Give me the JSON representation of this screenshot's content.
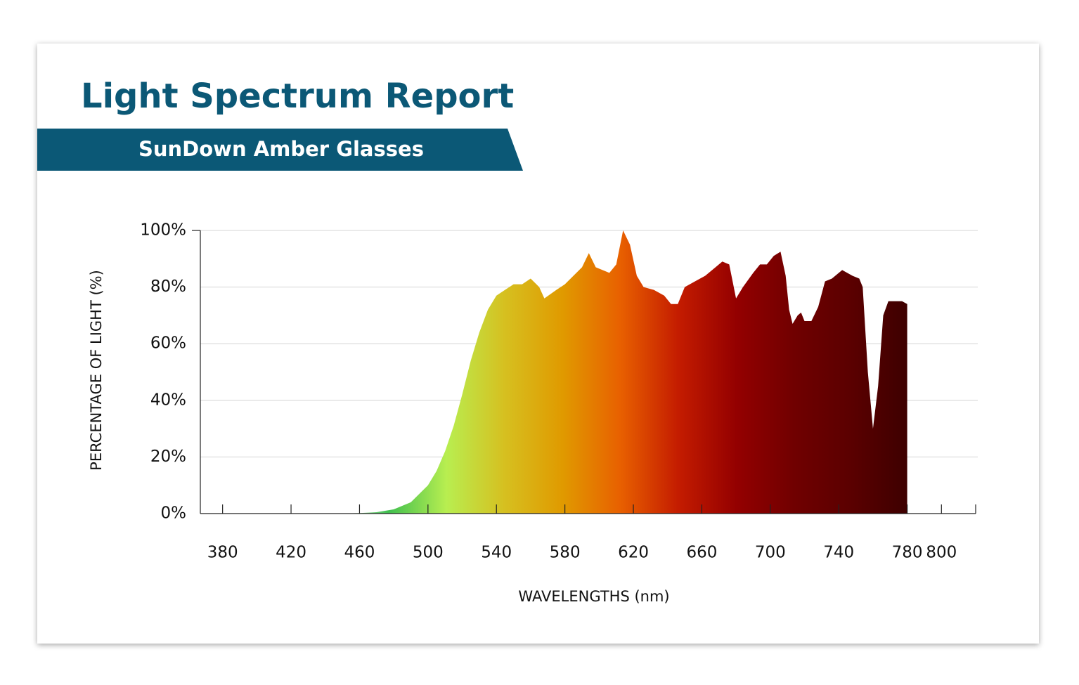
{
  "chart_data": {
    "type": "area",
    "title": "Light Spectrum Report",
    "subtitle": "SunDown Amber Glasses",
    "xlabel": "WAVELENGTHS (nm)",
    "ylabel": "PERCENTAGE OF LIGHT (%)",
    "x": [
      450,
      460,
      470,
      480,
      490,
      500,
      505,
      510,
      515,
      520,
      525,
      530,
      535,
      540,
      545,
      550,
      555,
      560,
      565,
      568,
      575,
      580,
      585,
      590,
      594,
      598,
      602,
      606,
      610,
      614,
      618,
      622,
      626,
      632,
      638,
      642,
      646,
      650,
      656,
      662,
      668,
      672,
      676,
      680,
      684,
      690,
      694,
      698,
      702,
      706,
      709,
      711,
      713,
      716,
      718,
      720,
      724,
      728,
      732,
      736,
      742,
      748,
      752,
      754,
      757,
      760,
      763,
      766,
      769,
      773,
      777,
      780
    ],
    "values": [
      0,
      0.2,
      0.5,
      1.5,
      4,
      10,
      15,
      22,
      31,
      42,
      54,
      64,
      72,
      77,
      79,
      81,
      81,
      83,
      80,
      76,
      79,
      81,
      84,
      87,
      92,
      87,
      86,
      85,
      88,
      100,
      95,
      84,
      80,
      79,
      77,
      74,
      74,
      80,
      82,
      84,
      87,
      89,
      88,
      76,
      80,
      85,
      88,
      88,
      91,
      92.5,
      84,
      72,
      67,
      70,
      71,
      68,
      68,
      73,
      82,
      83,
      86,
      84,
      83,
      80,
      50,
      30,
      45,
      70,
      75,
      75,
      75,
      74
    ],
    "colors": [
      "#e8f0e0",
      "#3fbf4f",
      "#b8ee50",
      "#d6c020",
      "#e09a00",
      "#e86000",
      "#c41c00",
      "#940000",
      "#700000",
      "#5a0000",
      "#3c0000"
    ],
    "xlim": [
      367,
      820
    ],
    "xticks": [
      380,
      420,
      460,
      500,
      540,
      580,
      620,
      660,
      700,
      740,
      780,
      800
    ],
    "ylim": [
      0,
      100
    ],
    "yticks": [
      {
        "value": 0,
        "label": "0%"
      },
      {
        "value": 20,
        "label": "20%"
      },
      {
        "value": 40,
        "label": "40%"
      },
      {
        "value": 60,
        "label": "60%"
      },
      {
        "value": 80,
        "label": "80%"
      },
      {
        "value": 100,
        "label": "100%"
      }
    ],
    "grid": true
  }
}
